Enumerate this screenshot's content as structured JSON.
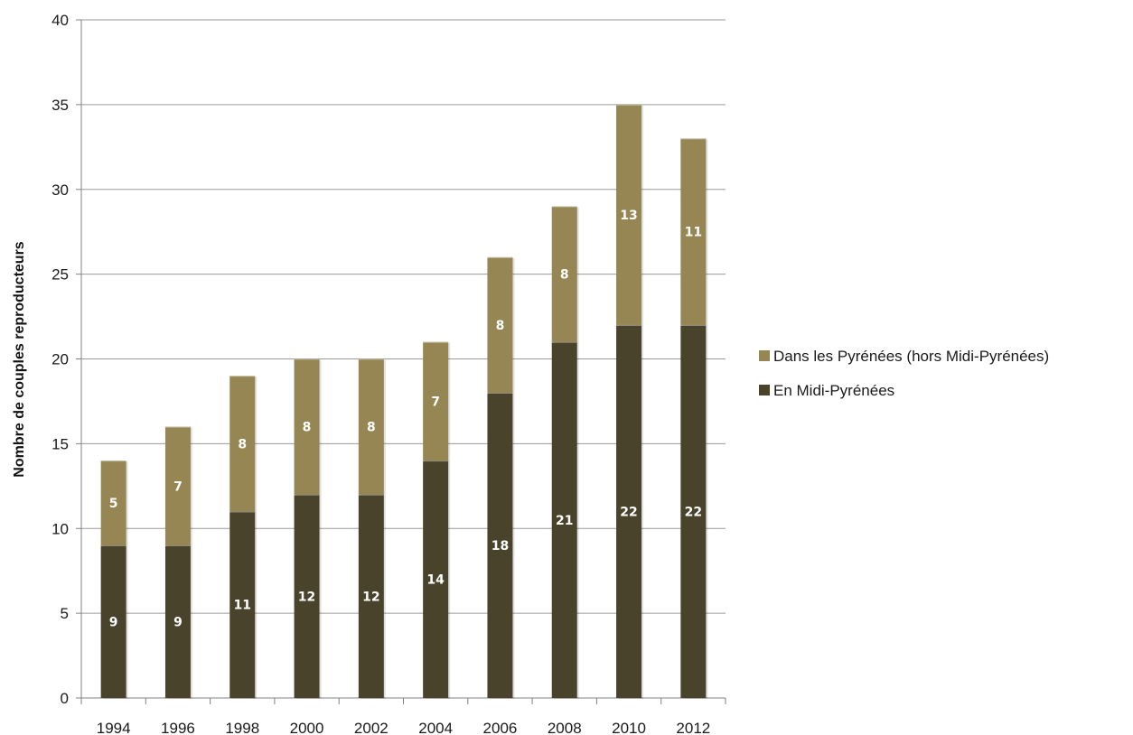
{
  "chart_data": {
    "type": "bar",
    "stacked": true,
    "categories": [
      "1994",
      "1996",
      "1998",
      "2000",
      "2002",
      "2004",
      "2006",
      "2008",
      "2010",
      "2012"
    ],
    "series": [
      {
        "name": "En Midi-Pyrénées",
        "values": [
          9,
          9,
          11,
          12,
          12,
          14,
          18,
          21,
          22,
          22
        ],
        "color": "#4a432b"
      },
      {
        "name": "Dans les Pyrénées (hors Midi-Pyrénées)",
        "values": [
          5,
          7,
          8,
          8,
          8,
          7,
          8,
          8,
          13,
          11
        ],
        "color": "#958653"
      }
    ],
    "title": "",
    "xlabel": "",
    "ylabel": "Nombre de couples reproducteurs",
    "ylim": [
      0,
      40
    ],
    "yticks": [
      "0",
      "5",
      "10",
      "15",
      "20",
      "25",
      "30",
      "35",
      "40"
    ],
    "grid": true,
    "legend_position": "right",
    "legend_entries": [
      {
        "label": "Dans les Pyrénées (hors Midi-Pyrénées)",
        "color": "#958653"
      },
      {
        "label": "En Midi-Pyrénées",
        "color": "#4a432b"
      }
    ],
    "data_labels": true
  }
}
